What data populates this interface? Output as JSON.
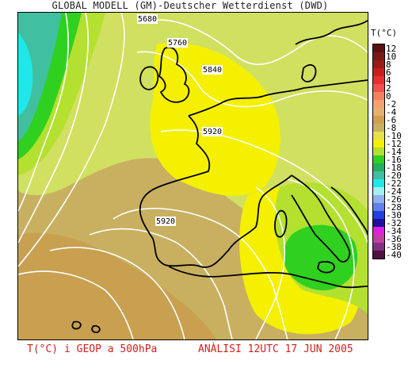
{
  "header": {
    "title": "GLOBAL MODELL (GM)-Deutscher Wetterdienst (DWD)"
  },
  "legend": {
    "title": "T(°C)",
    "items": [
      {
        "label": "12",
        "color": "#5a1010"
      },
      {
        "label": "10",
        "color": "#7a1818"
      },
      {
        "label": "8",
        "color": "#9c1a1a"
      },
      {
        "label": "6",
        "color": "#c81e1e"
      },
      {
        "label": "4",
        "color": "#e63030"
      },
      {
        "label": "2",
        "color": "#f05050"
      },
      {
        "label": "0",
        "color": "#f48060"
      },
      {
        "label": "-2",
        "color": "#f6a070"
      },
      {
        "label": "-4",
        "color": "#e6b070"
      },
      {
        "label": "-6",
        "color": "#d0a050"
      },
      {
        "label": "-8",
        "color": "#c8b060"
      },
      {
        "label": "-10",
        "color": "#e4e04a"
      },
      {
        "label": "-12",
        "color": "#f4f000"
      },
      {
        "label": "-14",
        "color": "#b4e030"
      },
      {
        "label": "-16",
        "color": "#30d020"
      },
      {
        "label": "-18",
        "color": "#20b060"
      },
      {
        "label": "-20",
        "color": "#40c0a0"
      },
      {
        "label": "-22",
        "color": "#20e8e8"
      },
      {
        "label": "-24",
        "color": "#a0f0f0"
      },
      {
        "label": "-26",
        "color": "#90b0f0"
      },
      {
        "label": "-28",
        "color": "#6080f0"
      },
      {
        "label": "-30",
        "color": "#2040e0"
      },
      {
        "label": "-32",
        "color": "#2010a0"
      },
      {
        "label": "-34",
        "color": "#e020e0"
      },
      {
        "label": "-36",
        "color": "#c040a0"
      },
      {
        "label": "-38",
        "color": "#803080"
      },
      {
        "label": "-40",
        "color": "#501040"
      }
    ]
  },
  "contours": {
    "labels": [
      "5680",
      "5760",
      "5840",
      "5920",
      "5920"
    ]
  },
  "footer": {
    "left": "T(°C) i GEOP a 500hPa",
    "right": "ANÀLISI 12UTC 17 JUN 2005"
  },
  "colors": {
    "olive": "#c8b060",
    "olive_dark": "#c8a050",
    "yellow_green": "#d0e060",
    "yellow": "#f4f000",
    "light_green": "#b4e030",
    "green": "#30d020",
    "teal": "#40c0a0",
    "cyan": "#20e8e8",
    "contour": "#ffffff",
    "coast": "#000000",
    "footer_text": "#d42020"
  }
}
